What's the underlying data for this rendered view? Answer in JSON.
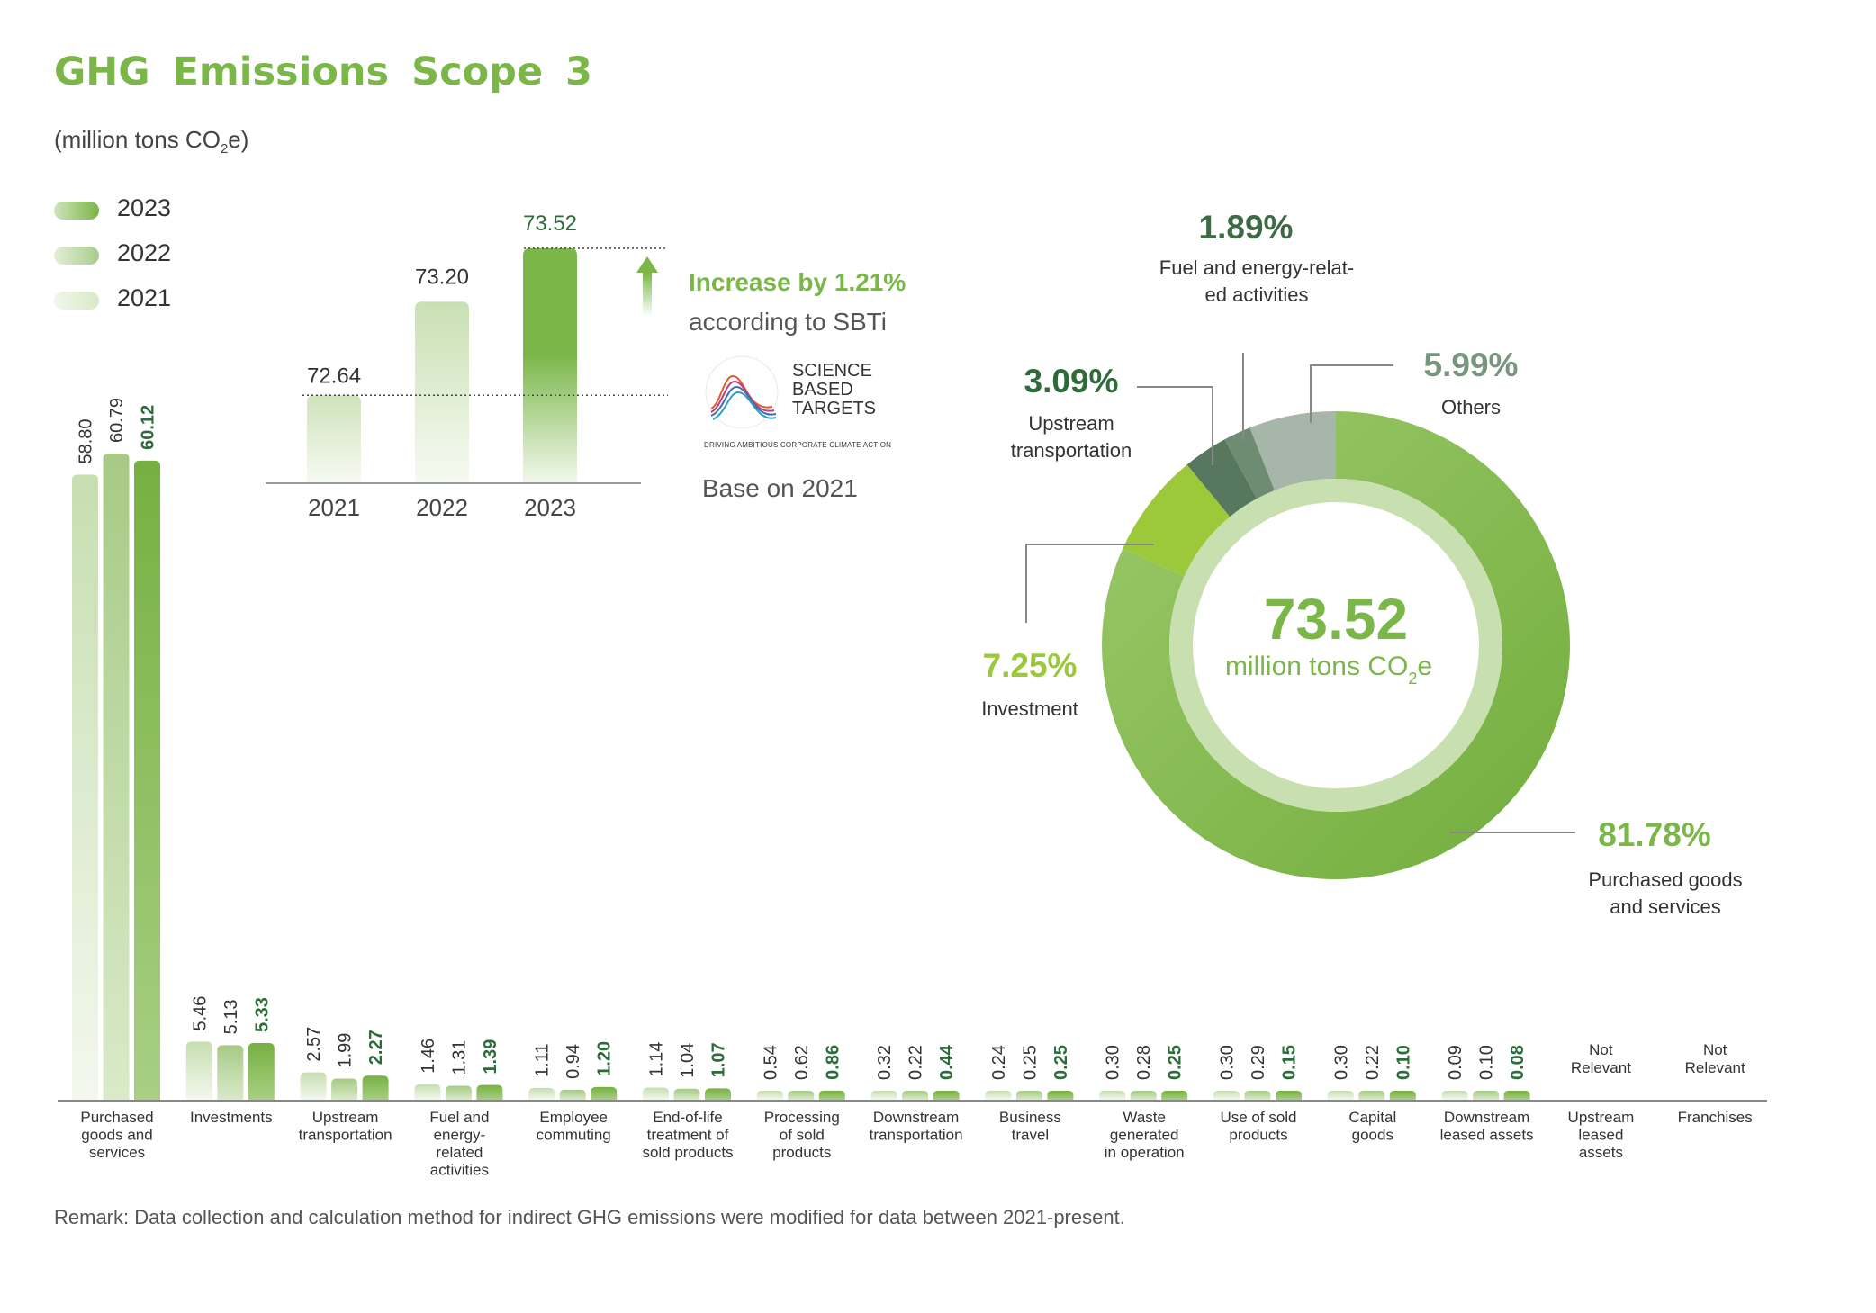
{
  "title": "GHG Emissions Scope 3",
  "units_main": "(million tons CO",
  "units_sub": "2",
  "units_end": "e)",
  "legend": [
    {
      "label": "2023",
      "color": "#7ab648"
    },
    {
      "label": "2022",
      "color": "#a9cc8b"
    },
    {
      "label": "2021",
      "color": "#d7e9c8"
    }
  ],
  "increase_text": "Increase by 1.21%",
  "sbti_text": "according to SBTi",
  "logo_lines": [
    "SCIENCE",
    "BASED",
    "TARGETS"
  ],
  "logo_tagline": "DRIVING AMBITIOUS CORPORATE CLIMATE ACTION",
  "base_text": "Base on 2021",
  "donut_center_value": "73.52",
  "donut_center_unit_a": "million tons CO",
  "donut_center_unit_sub": "2",
  "donut_center_unit_b": "e",
  "remark": "Remark: Data collection and calculation method for indirect GHG emissions were modified for data between 2021-present.",
  "chart_data": [
    {
      "type": "bar",
      "categories": [
        "2021",
        "2022",
        "2023"
      ],
      "values": [
        72.64,
        73.2,
        73.52
      ],
      "labels": [
        "72.64",
        "73.20",
        "73.52"
      ]
    },
    {
      "type": "pie",
      "slices": [
        {
          "label": "Purchased goods and services",
          "value": 81.78,
          "pct": "81.78%",
          "color": "#7ab648"
        },
        {
          "label": "Investment",
          "value": 7.25,
          "pct": "7.25%",
          "color": "#9ccc3a"
        },
        {
          "label": "Upstream transportation",
          "value": 3.09,
          "pct": "3.09%",
          "color": "#56785f"
        },
        {
          "label": "Fuel and energy-related activities",
          "value": 1.89,
          "pct": "1.89%",
          "color": "#6e8e73"
        },
        {
          "label": "Others",
          "value": 5.99,
          "pct": "5.99%",
          "color": "#a3b4a6"
        }
      ],
      "display_labels": {
        "Purchased goods and services": [
          "Purchased goods",
          "and services"
        ],
        "Investment": [
          "Investment"
        ],
        "Upstream transportation": [
          "Upstream",
          "transportation"
        ],
        "Fuel and energy-related activities": [
          "Fuel and energy-relat-",
          "ed activities"
        ],
        "Others": [
          "Others"
        ]
      }
    },
    {
      "type": "bar",
      "series": [
        {
          "name": "2021",
          "values": [
            58.8,
            5.46,
            2.57,
            1.46,
            1.11,
            1.14,
            0.54,
            0.32,
            0.24,
            0.3,
            0.3,
            0.3,
            0.09,
            null,
            null
          ]
        },
        {
          "name": "2022",
          "values": [
            60.79,
            5.13,
            1.99,
            1.31,
            0.94,
            1.04,
            0.62,
            0.22,
            0.25,
            0.28,
            0.29,
            0.22,
            0.1,
            null,
            null
          ]
        },
        {
          "name": "2023",
          "values": [
            60.12,
            5.33,
            2.27,
            1.39,
            1.2,
            1.07,
            0.86,
            0.44,
            0.25,
            0.25,
            0.15,
            0.1,
            0.08,
            null,
            null
          ]
        }
      ],
      "value_labels": [
        [
          "58.80",
          "60.79",
          "60.12"
        ],
        [
          "5.46",
          "5.13",
          "5.33"
        ],
        [
          "2.57",
          "1.99",
          "2.27"
        ],
        [
          "1.46",
          "1.31",
          "1.39"
        ],
        [
          "1.11",
          "0.94",
          "1.20"
        ],
        [
          "1.14",
          "1.04",
          "1.07"
        ],
        [
          "0.54",
          "0.62",
          "0.86"
        ],
        [
          "0.32",
          "0.22",
          "0.44"
        ],
        [
          "0.24",
          "0.25",
          "0.25"
        ],
        [
          "0.30",
          "0.28",
          "0.25"
        ],
        [
          "0.30",
          "0.29",
          "0.15"
        ],
        [
          "0.30",
          "0.22",
          "0.10"
        ],
        [
          "0.09",
          "0.10",
          "0.08"
        ],
        null,
        null
      ],
      "categories": [
        [
          "Purchased",
          "goods and",
          "services"
        ],
        [
          "Investments"
        ],
        [
          "Upstream",
          "transportation"
        ],
        [
          "Fuel and",
          "energy-",
          "related",
          "activities"
        ],
        [
          "Employee",
          "commuting"
        ],
        [
          "End-of-life",
          "treatment of",
          "sold products"
        ],
        [
          "Processing",
          "of sold",
          "products"
        ],
        [
          "Downstream",
          "transportation"
        ],
        [
          "Business",
          "travel"
        ],
        [
          "Waste",
          "generated",
          "in operation"
        ],
        [
          "Use of sold",
          "products"
        ],
        [
          "Capital",
          "goods"
        ],
        [
          "Downstream",
          "leased assets"
        ],
        [
          "Upstream",
          "leased",
          "assets"
        ],
        [
          "Franchises"
        ]
      ],
      "not_relevant": [
        "Not",
        "Relevant"
      ]
    }
  ]
}
